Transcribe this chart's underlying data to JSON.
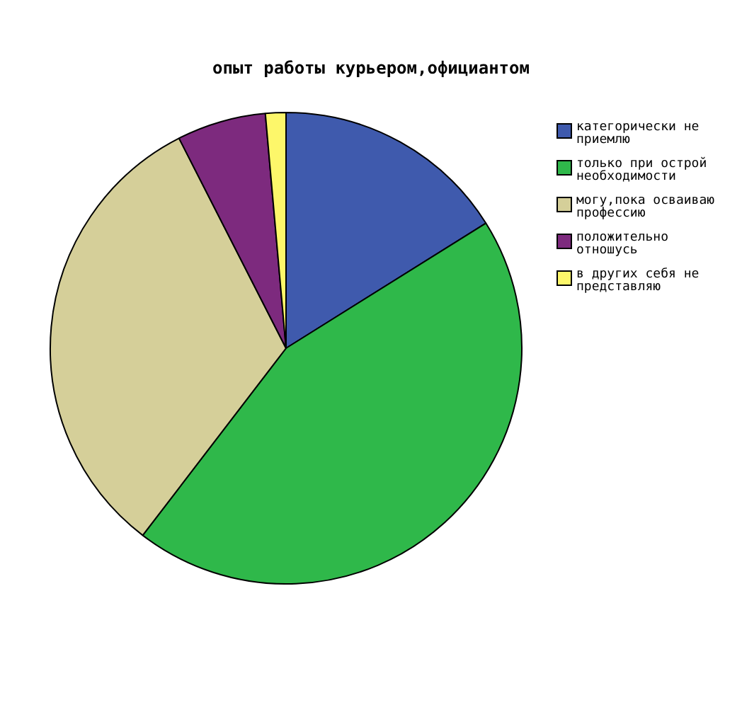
{
  "chart_data": {
    "type": "pie",
    "title": "опыт работы курьером,официантом",
    "categories": [
      "категорически не приемлю",
      "только при острой необходимости",
      "могу,пока осваиваю профессию",
      "положительно отношусь",
      "в других себя не представляю"
    ],
    "values": [
      16.1,
      44.3,
      32.1,
      6.1,
      1.4
    ],
    "colors": [
      "#3f5aad",
      "#2fb84a",
      "#d5cf99",
      "#7d2a7e",
      "#fdf76a"
    ],
    "legend": "right"
  }
}
